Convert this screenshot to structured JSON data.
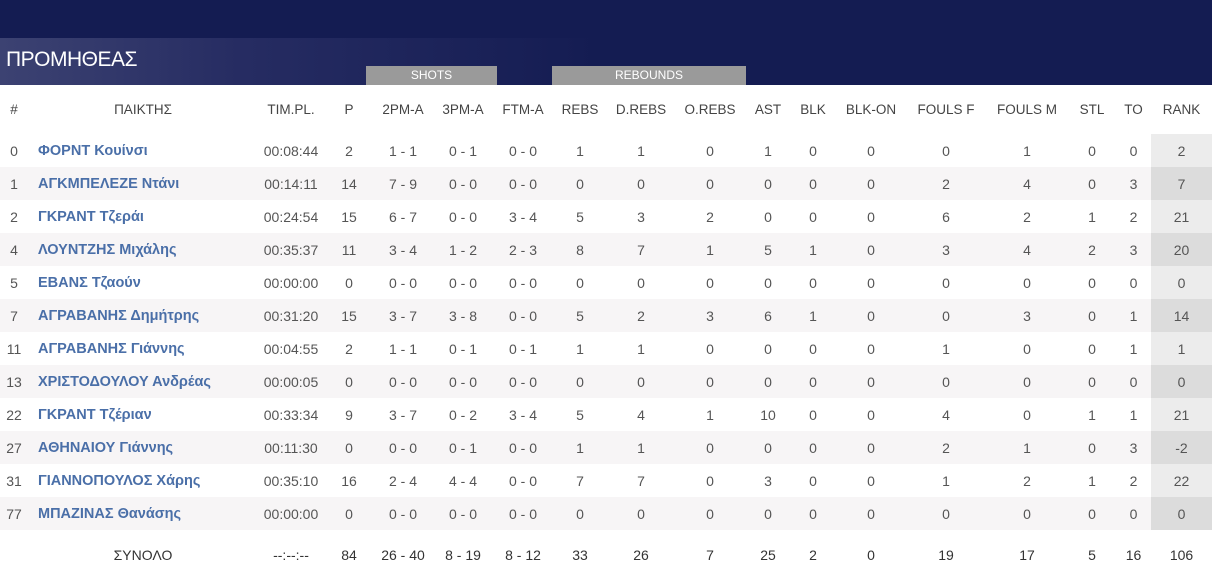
{
  "team_name": "ΠΡΟΜΗΘΕΑΣ",
  "groups": {
    "shots": "SHOTS",
    "rebounds": "REBOUNDS"
  },
  "colors": {
    "header_bg": "#141c52",
    "player_name": "#4a6fa8",
    "group_bar": "#9a9a9a",
    "rank_bg": "#ececec"
  },
  "columns": [
    "#",
    "ΠΑΙΚΤΗΣ",
    "TIM.PL.",
    "P",
    "2PM-A",
    "3PM-A",
    "FTM-A",
    "REBS",
    "D.REBS",
    "O.REBS",
    "AST",
    "BLK",
    "BLK-ON",
    "FOULS F",
    "FOULS M",
    "STL",
    "TO",
    "RANK"
  ],
  "rows": [
    [
      "0",
      "ΦΟΡΝΤ Κουίνσι",
      "00:08:44",
      "2",
      "1 - 1",
      "0 - 1",
      "0 - 0",
      "1",
      "1",
      "0",
      "1",
      "0",
      "0",
      "0",
      "1",
      "0",
      "0",
      "2"
    ],
    [
      "1",
      "ΑΓΚΜΠΕΛΕΖΕ Ντάνι",
      "00:14:11",
      "14",
      "7 - 9",
      "0 - 0",
      "0 - 0",
      "0",
      "0",
      "0",
      "0",
      "0",
      "0",
      "2",
      "4",
      "0",
      "3",
      "7"
    ],
    [
      "2",
      "ΓΚΡΑΝΤ Τζεράι",
      "00:24:54",
      "15",
      "6 - 7",
      "0 - 0",
      "3 - 4",
      "5",
      "3",
      "2",
      "0",
      "0",
      "0",
      "6",
      "2",
      "1",
      "2",
      "21"
    ],
    [
      "4",
      "ΛΟΥΝΤΖΗΣ Μιχάλης",
      "00:35:37",
      "11",
      "3 - 4",
      "1 - 2",
      "2 - 3",
      "8",
      "7",
      "1",
      "5",
      "1",
      "0",
      "3",
      "4",
      "2",
      "3",
      "20"
    ],
    [
      "5",
      "ΕΒΑΝΣ Τζαούν",
      "00:00:00",
      "0",
      "0 - 0",
      "0 - 0",
      "0 - 0",
      "0",
      "0",
      "0",
      "0",
      "0",
      "0",
      "0",
      "0",
      "0",
      "0",
      "0"
    ],
    [
      "7",
      "ΑΓΡΑΒΑΝΗΣ Δημήτρης",
      "00:31:20",
      "15",
      "3 - 7",
      "3 - 8",
      "0 - 0",
      "5",
      "2",
      "3",
      "6",
      "1",
      "0",
      "0",
      "3",
      "0",
      "1",
      "14"
    ],
    [
      "11",
      "ΑΓΡΑΒΑΝΗΣ Γιάννης",
      "00:04:55",
      "2",
      "1 - 1",
      "0 - 1",
      "0 - 1",
      "1",
      "1",
      "0",
      "0",
      "0",
      "0",
      "1",
      "0",
      "0",
      "1",
      "1"
    ],
    [
      "13",
      "ΧΡΙΣΤΟΔΟΥΛΟΥ Ανδρέας",
      "00:00:05",
      "0",
      "0 - 0",
      "0 - 0",
      "0 - 0",
      "0",
      "0",
      "0",
      "0",
      "0",
      "0",
      "0",
      "0",
      "0",
      "0",
      "0"
    ],
    [
      "22",
      "ΓΚΡΑΝΤ Τζέριαν",
      "00:33:34",
      "9",
      "3 - 7",
      "0 - 2",
      "3 - 4",
      "5",
      "4",
      "1",
      "10",
      "0",
      "0",
      "4",
      "0",
      "1",
      "1",
      "21"
    ],
    [
      "27",
      "ΑΘΗΝΑΙΟΥ Γιάννης",
      "00:11:30",
      "0",
      "0 - 0",
      "0 - 1",
      "0 - 0",
      "1",
      "1",
      "0",
      "0",
      "0",
      "0",
      "2",
      "1",
      "0",
      "3",
      "-2"
    ],
    [
      "31",
      "ΓΙΑΝΝΟΠΟΥΛΟΣ Χάρης",
      "00:35:10",
      "16",
      "2 - 4",
      "4 - 4",
      "0 - 0",
      "7",
      "7",
      "0",
      "3",
      "0",
      "0",
      "1",
      "2",
      "1",
      "2",
      "22"
    ],
    [
      "77",
      "ΜΠΑΖΙΝΑΣ Θανάσης",
      "00:00:00",
      "0",
      "0 - 0",
      "0 - 0",
      "0 - 0",
      "0",
      "0",
      "0",
      "0",
      "0",
      "0",
      "0",
      "0",
      "0",
      "0",
      "0"
    ]
  ],
  "totals": [
    "",
    "ΣΥΝΟΛΟ",
    "--:--:--",
    "84",
    "26 - 40",
    "8 - 19",
    "8 - 12",
    "33",
    "26",
    "7",
    "25",
    "2",
    "0",
    "19",
    "17",
    "5",
    "16",
    "106"
  ]
}
